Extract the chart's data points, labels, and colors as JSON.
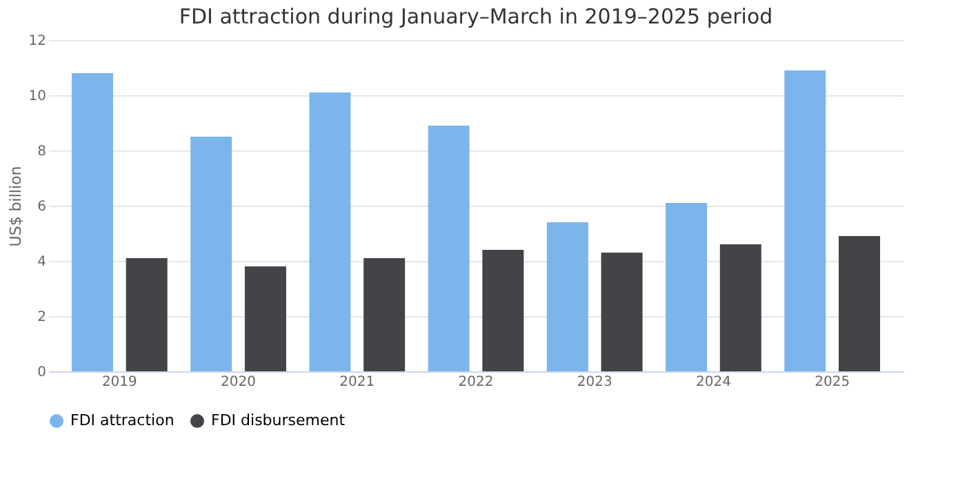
{
  "chart_data": {
    "type": "bar",
    "title": "FDI attraction during January–March in 2019–2025 period",
    "ylabel": "US$ billion",
    "categories": [
      "2019",
      "2020",
      "2021",
      "2022",
      "2023",
      "2024",
      "2025"
    ],
    "series": [
      {
        "name": "FDI attraction",
        "color": "#7cb5ec",
        "values": [
          10.8,
          8.5,
          10.1,
          8.9,
          5.4,
          6.1,
          10.9
        ]
      },
      {
        "name": "FDI disbursement",
        "color": "#434348",
        "values": [
          4.1,
          3.8,
          4.1,
          4.4,
          4.3,
          4.6,
          4.9
        ]
      }
    ],
    "ylim": [
      0,
      12
    ],
    "yticks": [
      0,
      2,
      4,
      6,
      8,
      10,
      12
    ],
    "grid": "y",
    "legend": "bottom"
  }
}
